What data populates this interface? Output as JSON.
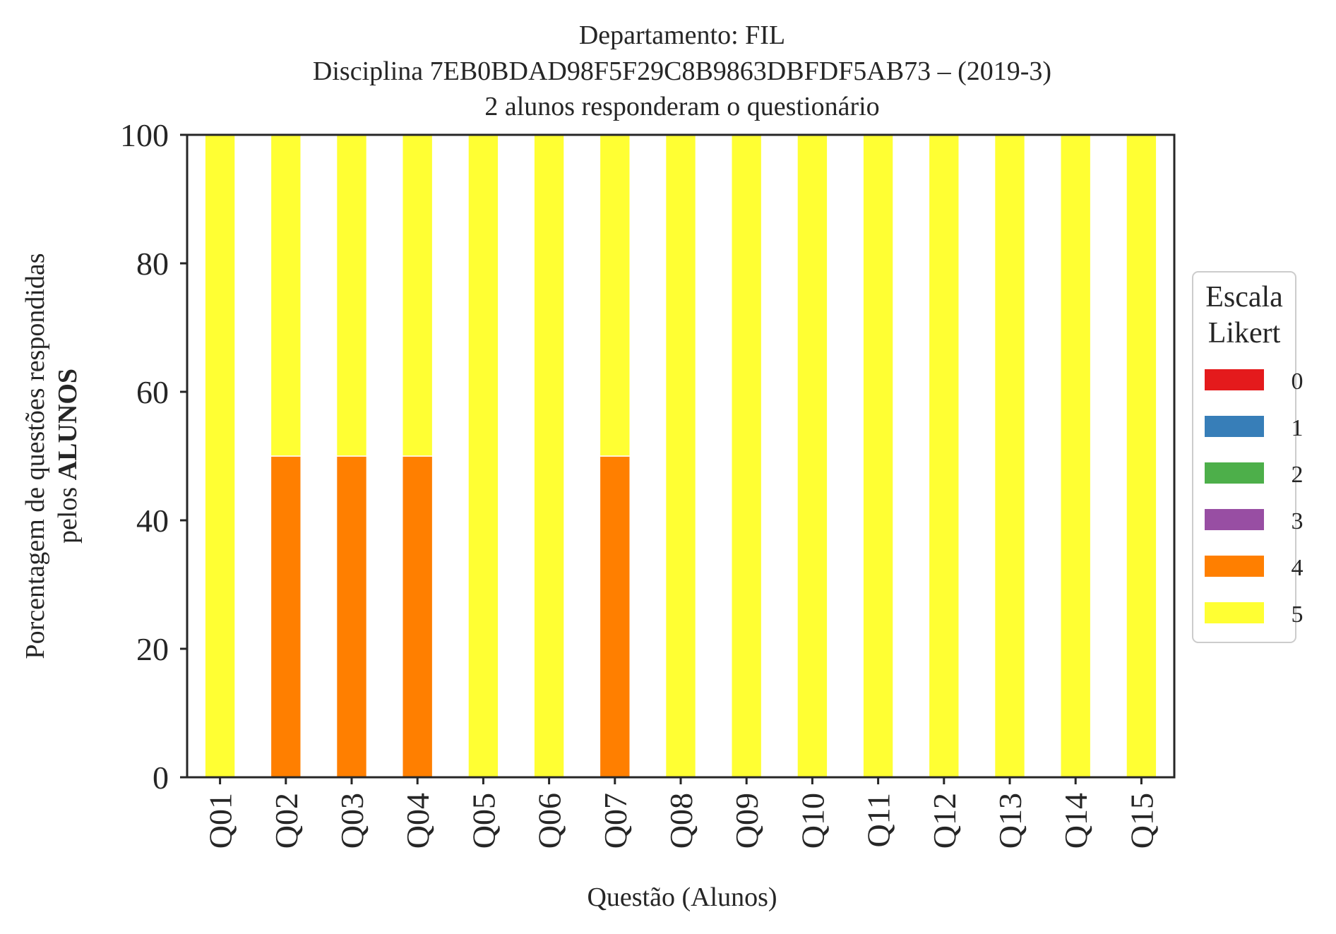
{
  "chart_data": {
    "type": "bar",
    "stacked": true,
    "title_lines": [
      "Departamento: FIL",
      "Disciplina 7EB0BDAD98F5F29C8B9863DBFDF5AB73 – (2019-3)",
      "2 alunos responderam o questionário"
    ],
    "xlabel": "Questão (Alunos)",
    "ylabel_line1": "Porcentagem de questões respondidas",
    "ylabel_line2_prefix": "pelos ",
    "ylabel_line2_bold": "ALUNOS",
    "ylim": [
      0,
      100
    ],
    "yticks": [
      "0",
      "20",
      "40",
      "60",
      "80",
      "100"
    ],
    "categories": [
      "Q01",
      "Q02",
      "Q03",
      "Q04",
      "Q05",
      "Q06",
      "Q07",
      "Q08",
      "Q09",
      "Q10",
      "Q11",
      "Q12",
      "Q13",
      "Q14",
      "Q15"
    ],
    "series": [
      {
        "name": "0",
        "color": "#e41a1c",
        "values": [
          0,
          0,
          0,
          0,
          0,
          0,
          0,
          0,
          0,
          0,
          0,
          0,
          0,
          0,
          0
        ]
      },
      {
        "name": "1",
        "color": "#377eb8",
        "values": [
          0,
          0,
          0,
          0,
          0,
          0,
          0,
          0,
          0,
          0,
          0,
          0,
          0,
          0,
          0
        ]
      },
      {
        "name": "2",
        "color": "#4daf4a",
        "values": [
          0,
          0,
          0,
          0,
          0,
          0,
          0,
          0,
          0,
          0,
          0,
          0,
          0,
          0,
          0
        ]
      },
      {
        "name": "3",
        "color": "#984ea3",
        "values": [
          0,
          0,
          0,
          0,
          0,
          0,
          0,
          0,
          0,
          0,
          0,
          0,
          0,
          0,
          0
        ]
      },
      {
        "name": "4",
        "color": "#ff7f00",
        "values": [
          0,
          50,
          50,
          50,
          0,
          0,
          50,
          0,
          0,
          0,
          0,
          0,
          0,
          0,
          0
        ]
      },
      {
        "name": "5",
        "color": "#ffff33",
        "values": [
          100,
          50,
          50,
          50,
          100,
          100,
          50,
          100,
          100,
          100,
          100,
          100,
          100,
          100,
          100
        ]
      }
    ],
    "legend": {
      "title_lines": [
        "Escala",
        "Likert"
      ],
      "placement": "outside-right"
    },
    "grid": false
  }
}
